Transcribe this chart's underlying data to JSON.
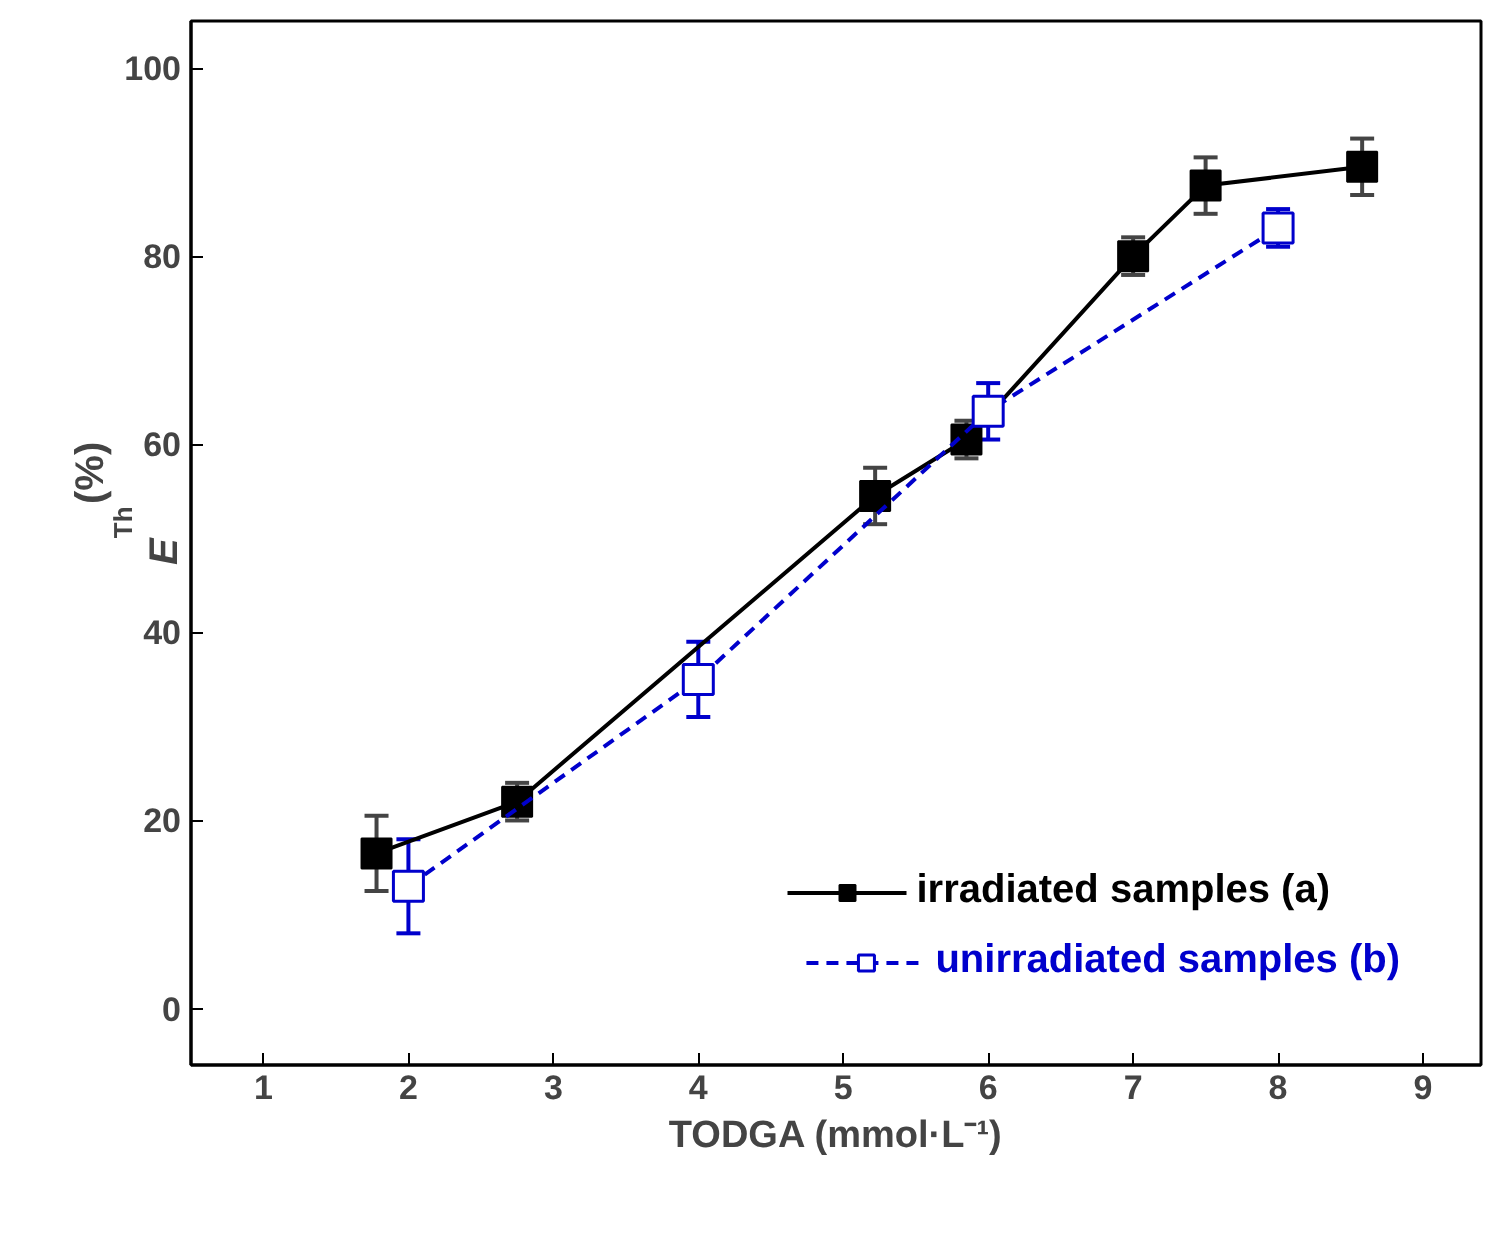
{
  "chart_data": {
    "type": "line",
    "xlabel": "TODGA (mmol·L⁻¹)",
    "ylabel": "E$_{Th}$ (%)",
    "xlim": [
      0.5,
      9.4
    ],
    "ylim": [
      -6,
      105
    ],
    "xticks": [
      1,
      2,
      3,
      4,
      5,
      6,
      7,
      8,
      9
    ],
    "yticks": [
      0,
      20,
      40,
      60,
      80,
      100
    ],
    "grid": false,
    "legend": "bottom right",
    "series": [
      {
        "name": "irradiated samples (a)",
        "color": "#000000",
        "marker": "square",
        "line_style": "solid",
        "x": [
          1.78,
          2.75,
          5.22,
          5.85,
          7.0,
          7.5,
          8.58
        ],
        "values": [
          16.5,
          22,
          54.5,
          60.5,
          80,
          87.5,
          89.5
        ],
        "errors": [
          4,
          2,
          3,
          2,
          2,
          3,
          3
        ]
      },
      {
        "name": "unirradiated samples (b)",
        "color": "#0000cc",
        "marker": "square_open",
        "line_style": "dashed",
        "x": [
          2.0,
          4.0,
          6.0,
          8.0
        ],
        "values": [
          13,
          35,
          63.5,
          83
        ],
        "errors": [
          5,
          4,
          3,
          2
        ]
      }
    ]
  }
}
